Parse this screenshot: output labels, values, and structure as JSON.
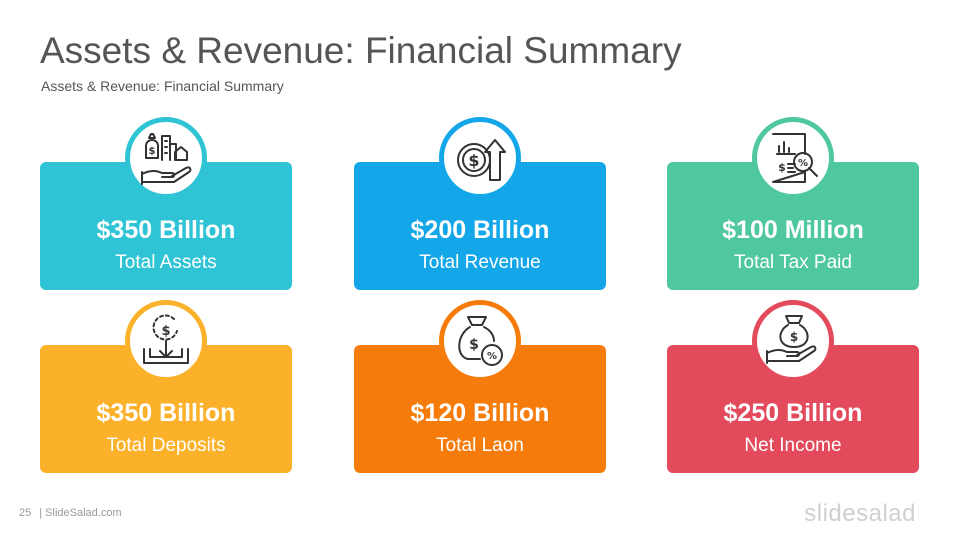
{
  "slide": {
    "title": "Assets & Revenue: Financial Summary",
    "subtitle": "Assets & Revenue: Financial Summary"
  },
  "cards": [
    {
      "value": "$350 Billion",
      "label": "Total Assets",
      "color": "#2ec4d5",
      "icon": "hand-money-buildings-icon"
    },
    {
      "value": "$200 Billion",
      "label": "Total Revenue",
      "color": "#13a6e8",
      "icon": "dollar-coin-arrow-up-icon"
    },
    {
      "value": "$100 Million",
      "label": "Total Tax Paid",
      "color": "#4ec89c",
      "icon": "tax-document-magnifier-icon"
    },
    {
      "value": "$350 Billion",
      "label": "Total Deposits",
      "color": "#fbb12a",
      "icon": "coin-deposit-box-icon"
    },
    {
      "value": "$120 Billion",
      "label": "Total Laon",
      "color": "#f57c0b",
      "icon": "money-bag-percent-icon"
    },
    {
      "value": "$250 Billion",
      "label": "Net Income",
      "color": "#e34a5b",
      "icon": "hand-money-bag-icon"
    }
  ],
  "footer": {
    "page_number": "25",
    "site": "| SlideSalad.com",
    "brand": "slidesalad"
  }
}
